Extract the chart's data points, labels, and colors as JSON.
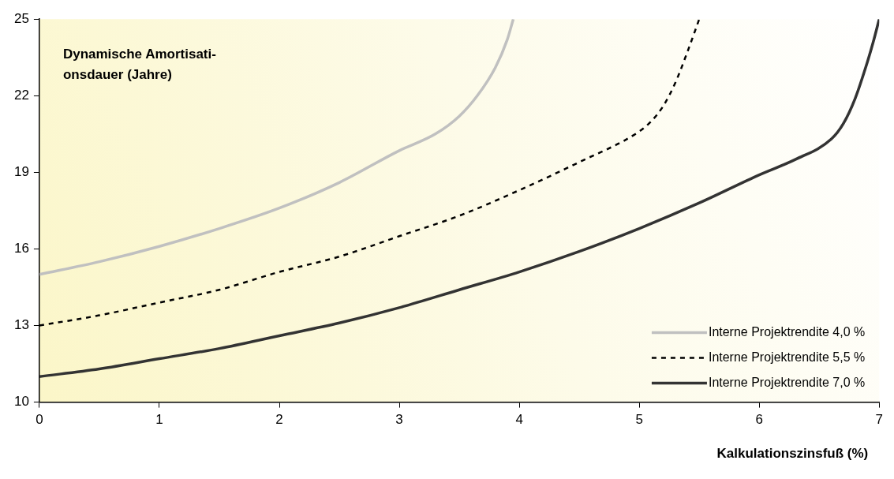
{
  "chart_data": {
    "type": "line",
    "ylabel": "Dynamische Amortisati-\nonsdauer (Jahre)",
    "xlabel": "Kalkulationszinsfuß (%)",
    "xlim": [
      0,
      7
    ],
    "xticks": [
      0,
      1,
      2,
      3,
      4,
      5,
      6,
      7
    ],
    "ylim": [
      10,
      25
    ],
    "yticks": [
      10,
      13,
      16,
      19,
      22,
      25
    ],
    "grid": false,
    "legend": "bottom right",
    "marker": "none",
    "series": [
      {
        "name": "Interne Projektrendite 4,0 %",
        "color": "#c0c0c0",
        "line_style": "solid",
        "x": [
          0,
          0.5,
          1,
          1.5,
          2,
          2.5,
          3,
          3.3,
          3.5,
          3.65,
          3.8,
          3.9,
          3.95
        ],
        "values": [
          15,
          15.5,
          16.1,
          16.8,
          17.6,
          18.6,
          19.85,
          20.5,
          21.2,
          22,
          23.1,
          24.2,
          25
        ]
      },
      {
        "name": "Interne Projektrendite 5,5 %",
        "color": "#000000",
        "line_style": "dashed",
        "x": [
          0,
          0.5,
          1,
          1.5,
          2,
          2.5,
          3,
          3.5,
          4,
          4.5,
          5,
          5.1,
          5.2,
          5.3,
          5.4,
          5.5
        ],
        "values": [
          13,
          13.4,
          13.9,
          14.4,
          15.1,
          15.7,
          16.5,
          17.3,
          18.3,
          19.4,
          20.6,
          21,
          21.6,
          22.5,
          23.7,
          25
        ]
      },
      {
        "name": "Interne Projektrendite 7,0 %",
        "color": "#333333",
        "line_style": "solid",
        "x": [
          0,
          0.5,
          1,
          1.5,
          2,
          2.5,
          3,
          3.5,
          4,
          4.5,
          5,
          5.5,
          6,
          6.3,
          6.6,
          6.7,
          6.8,
          6.9,
          6.95,
          7
        ],
        "values": [
          11,
          11.3,
          11.7,
          12.1,
          12.6,
          13.1,
          13.7,
          14.4,
          15.1,
          15.9,
          16.8,
          17.8,
          18.9,
          19.5,
          20.3,
          20.9,
          21.9,
          23.3,
          24.1,
          25
        ]
      }
    ]
  }
}
